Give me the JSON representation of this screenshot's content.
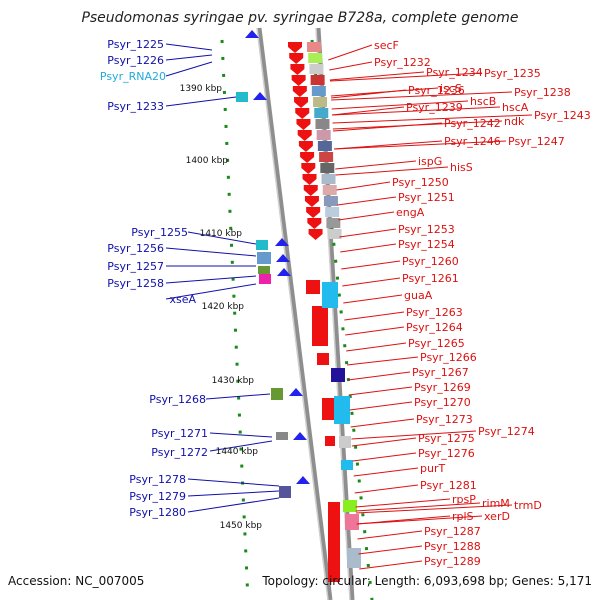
{
  "title": "Pseudomonas syringae pv. syringae B728a, complete genome",
  "accession": "Accession: NC_007005",
  "topology": "Topology: circular; Length: 6,093,698 bp; Genes: 5,171",
  "colors": {
    "left_label": "#1010aa",
    "rna_label": "#22aadd",
    "right_label": "#dd1111",
    "strand": "#999999",
    "ruler_tick": "#1a8a1a"
  },
  "kbp_labels": [
    "1390 kbp",
    "1400 kbp",
    "1410 kbp",
    "1420 kbp",
    "1430 kbp",
    "1440 kbp",
    "1450 kbp"
  ],
  "left_labels": [
    "Psyr_1225",
    "Psyr_1226",
    "Psyr_RNA20",
    "Psyr_1233",
    "Psyr_1255",
    "Psyr_1256",
    "Psyr_1257",
    "Psyr_1258",
    "xseA",
    "Psyr_1268",
    "Psyr_1271",
    "Psyr_1272",
    "Psyr_1278",
    "Psyr_1279",
    "Psyr_1280"
  ],
  "right_labels": [
    "secF",
    "Psyr_1232",
    "Psyr_1234",
    "Psyr_1235",
    "iscS",
    "Psyr_1238",
    "Psyr_1236",
    "hscB",
    "hscA",
    "Psyr_1239",
    "ndk",
    "Psyr_1243",
    "Psyr_1242",
    "Psyr_1246",
    "Psyr_1247",
    "ispG",
    "hisS",
    "Psyr_1250",
    "Psyr_1251",
    "engA",
    "Psyr_1253",
    "Psyr_1254",
    "Psyr_1260",
    "Psyr_1261",
    "guaA",
    "Psyr_1263",
    "Psyr_1264",
    "Psyr_1265",
    "Psyr_1266",
    "Psyr_1267",
    "Psyr_1269",
    "Psyr_1270",
    "Psyr_1273",
    "Psyr_1274",
    "Psyr_1275",
    "Psyr_1276",
    "purT",
    "Psyr_1281",
    "rpsP",
    "rimM",
    "trmD",
    "rplS",
    "xerD",
    "Psyr_1287",
    "Psyr_1288",
    "Psyr_1289"
  ]
}
